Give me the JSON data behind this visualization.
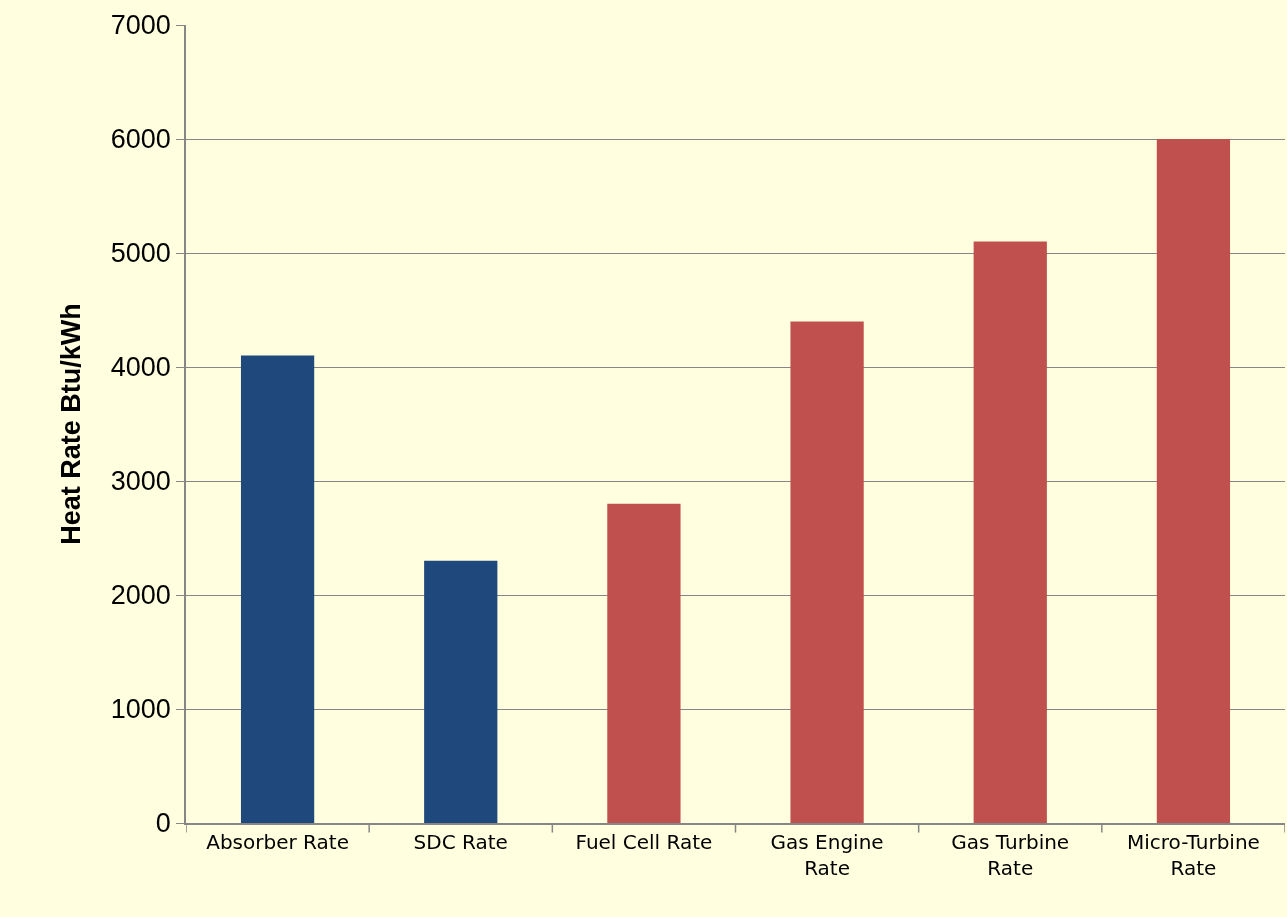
{
  "chart_data": {
    "type": "bar",
    "ylabel": "Heat Rate Btu/kWh",
    "categories": [
      "Absorber Rate",
      "SDC Rate",
      "Fuel Cell Rate",
      "Gas Engine Rate",
      "Gas Turbine Rate",
      "Micro-Turbine Rate"
    ],
    "values": [
      4100,
      2300,
      2800,
      4400,
      5100,
      6000
    ],
    "colors": [
      "#1f497d",
      "#1f497d",
      "#c0504d",
      "#c0504d",
      "#c0504d",
      "#c0504d"
    ],
    "ylim": [
      0,
      7000
    ],
    "yticks": [
      0,
      1000,
      2000,
      3000,
      4000,
      5000,
      6000,
      7000
    ],
    "grid": "y"
  }
}
